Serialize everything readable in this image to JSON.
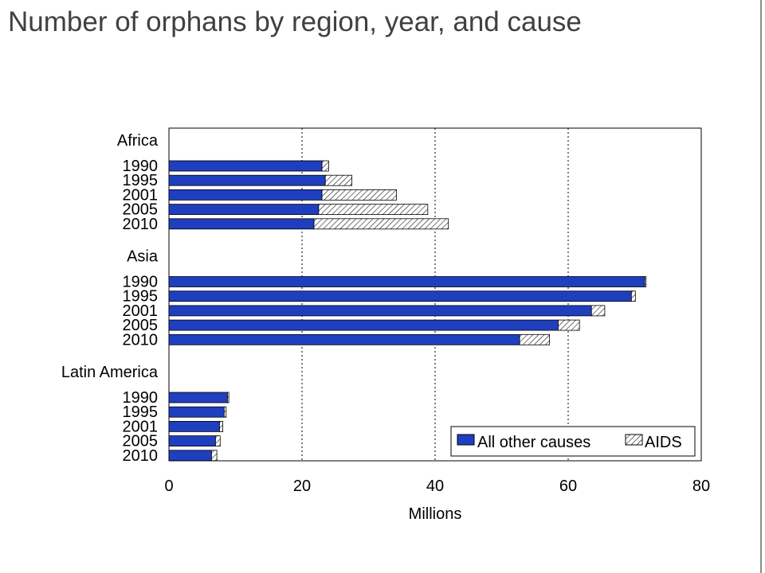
{
  "title": "Number of orphans by region, year, and cause",
  "colors": {
    "other": "#1f3fbf",
    "aids_fill": "#ffffff",
    "aids_hatch": "#000000",
    "title": "#404040"
  },
  "chart_data": {
    "type": "bar",
    "orientation": "horizontal",
    "stacked": true,
    "title": "Number of orphans by region, year, and cause",
    "xlabel": "Millions",
    "ylabel": "",
    "xlim": [
      0,
      80
    ],
    "xticks": [
      0,
      20,
      40,
      60,
      80
    ],
    "grid": "vertical dotted",
    "legend_position": "bottom-right",
    "series": [
      {
        "name": "All other causes",
        "key": "other",
        "color": "#1f3fbf"
      },
      {
        "name": "AIDS",
        "key": "aids",
        "pattern": "hatched"
      }
    ],
    "groups": [
      {
        "label": "Africa",
        "bars": [
          {
            "label": "1990",
            "other": 23.0,
            "aids": 1.0
          },
          {
            "label": "1995",
            "other": 23.5,
            "aids": 4.0
          },
          {
            "label": "2001",
            "other": 23.0,
            "aids": 11.2
          },
          {
            "label": "2005",
            "other": 22.5,
            "aids": 16.4
          },
          {
            "label": "2010",
            "other": 21.8,
            "aids": 20.2
          }
        ]
      },
      {
        "label": "Asia",
        "bars": [
          {
            "label": "1990",
            "other": 71.5,
            "aids": 0.2
          },
          {
            "label": "1995",
            "other": 69.5,
            "aids": 0.6
          },
          {
            "label": "2001",
            "other": 63.5,
            "aids": 2.0
          },
          {
            "label": "2005",
            "other": 58.5,
            "aids": 3.2
          },
          {
            "label": "2010",
            "other": 52.7,
            "aids": 4.5
          }
        ]
      },
      {
        "label": "Latin America",
        "bars": [
          {
            "label": "1990",
            "other": 8.8,
            "aids": 0.2
          },
          {
            "label": "1995",
            "other": 8.3,
            "aids": 0.3
          },
          {
            "label": "2001",
            "other": 7.6,
            "aids": 0.5
          },
          {
            "label": "2005",
            "other": 7.0,
            "aids": 0.7
          },
          {
            "label": "2010",
            "other": 6.4,
            "aids": 0.8
          }
        ]
      }
    ]
  }
}
